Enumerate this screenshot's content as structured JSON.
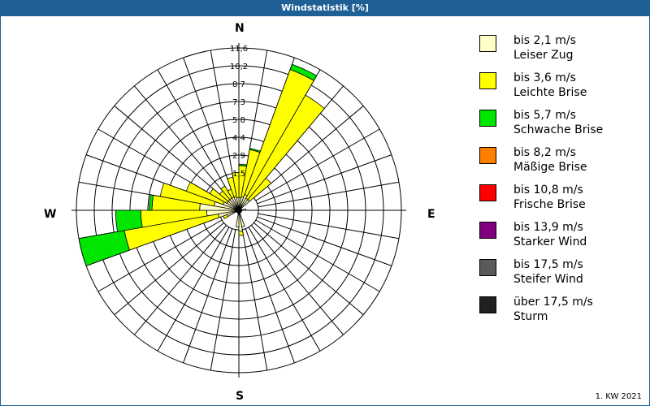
{
  "title": "Windstatistik [%]",
  "footer": "1. KW 2021",
  "compass": {
    "n": "N",
    "e": "E",
    "s": "S",
    "w": "W"
  },
  "legend": [
    {
      "range": "bis 2,1 m/s",
      "name": "Leiser Zug",
      "color": "#ffffc8"
    },
    {
      "range": "bis 3,6 m/s",
      "name": "Leichte Brise",
      "color": "#ffff00"
    },
    {
      "range": "bis 5,7 m/s",
      "name": "Schwache Brise",
      "color": "#00e600"
    },
    {
      "range": "bis 8,2 m/s",
      "name": "Mäßige Brise",
      "color": "#ff8000"
    },
    {
      "range": "bis 10,8 m/s",
      "name": "Frische Brise",
      "color": "#ff0000"
    },
    {
      "range": "bis 13,9 m/s",
      "name": "Starker Wind",
      "color": "#800080"
    },
    {
      "range": "bis 17,5 m/s",
      "name": "Steifer Wind",
      "color": "#5a5a5a"
    },
    {
      "range": "über 17,5 m/s",
      "name": "Sturm",
      "color": "#202020"
    }
  ],
  "chart_data": {
    "type": "windrose",
    "title": "Windstatistik [%]",
    "unit": "%",
    "ring_labels": [
      "1,5",
      "2,9",
      "4,4",
      "5,8",
      "7,3",
      "8,7",
      "10,2",
      "11,6"
    ],
    "rmax": 11.6,
    "sector_width_deg": 10,
    "series_names": [
      "Leiser Zug",
      "Leichte Brise",
      "Schwache Brise"
    ],
    "sectors": [
      {
        "dir": 0,
        "values": [
          0.9,
          2.3,
          0.1
        ]
      },
      {
        "dir": 10,
        "values": [
          1.0,
          3.4,
          0.1
        ]
      },
      {
        "dir": 20,
        "values": [
          1.2,
          9.5,
          0.4
        ]
      },
      {
        "dir": 30,
        "values": [
          1.0,
          8.5,
          0.0
        ]
      },
      {
        "dir": 40,
        "values": [
          1.0,
          2.0,
          0.0
        ]
      },
      {
        "dir": 80,
        "values": [
          0.5,
          0.0,
          0.0
        ]
      },
      {
        "dir": 160,
        "values": [
          1.2,
          0.0,
          0.0
        ]
      },
      {
        "dir": 170,
        "values": [
          1.5,
          0.3,
          0.0
        ]
      },
      {
        "dir": 180,
        "values": [
          1.2,
          0.0,
          0.0
        ]
      },
      {
        "dir": 240,
        "values": [
          0.9,
          0.3,
          0.0
        ]
      },
      {
        "dir": 250,
        "values": [
          1.5,
          6.8,
          3.3
        ]
      },
      {
        "dir": 260,
        "values": [
          2.3,
          4.7,
          1.8
        ]
      },
      {
        "dir": 270,
        "values": [
          2.8,
          3.4,
          0.2
        ]
      },
      {
        "dir": 280,
        "values": [
          1.8,
          3.9,
          0.0
        ]
      },
      {
        "dir": 290,
        "values": [
          1.2,
          2.8,
          0.0
        ]
      },
      {
        "dir": 300,
        "values": [
          1.0,
          1.4,
          0.0
        ]
      },
      {
        "dir": 310,
        "values": [
          1.0,
          0.8,
          0.0
        ]
      },
      {
        "dir": 320,
        "values": [
          1.0,
          1.0,
          0.0
        ]
      },
      {
        "dir": 330,
        "values": [
          1.0,
          0.6,
          0.0
        ]
      },
      {
        "dir": 340,
        "values": [
          1.0,
          1.4,
          0.0
        ]
      },
      {
        "dir": 350,
        "values": [
          0.9,
          1.8,
          0.0
        ]
      }
    ]
  }
}
